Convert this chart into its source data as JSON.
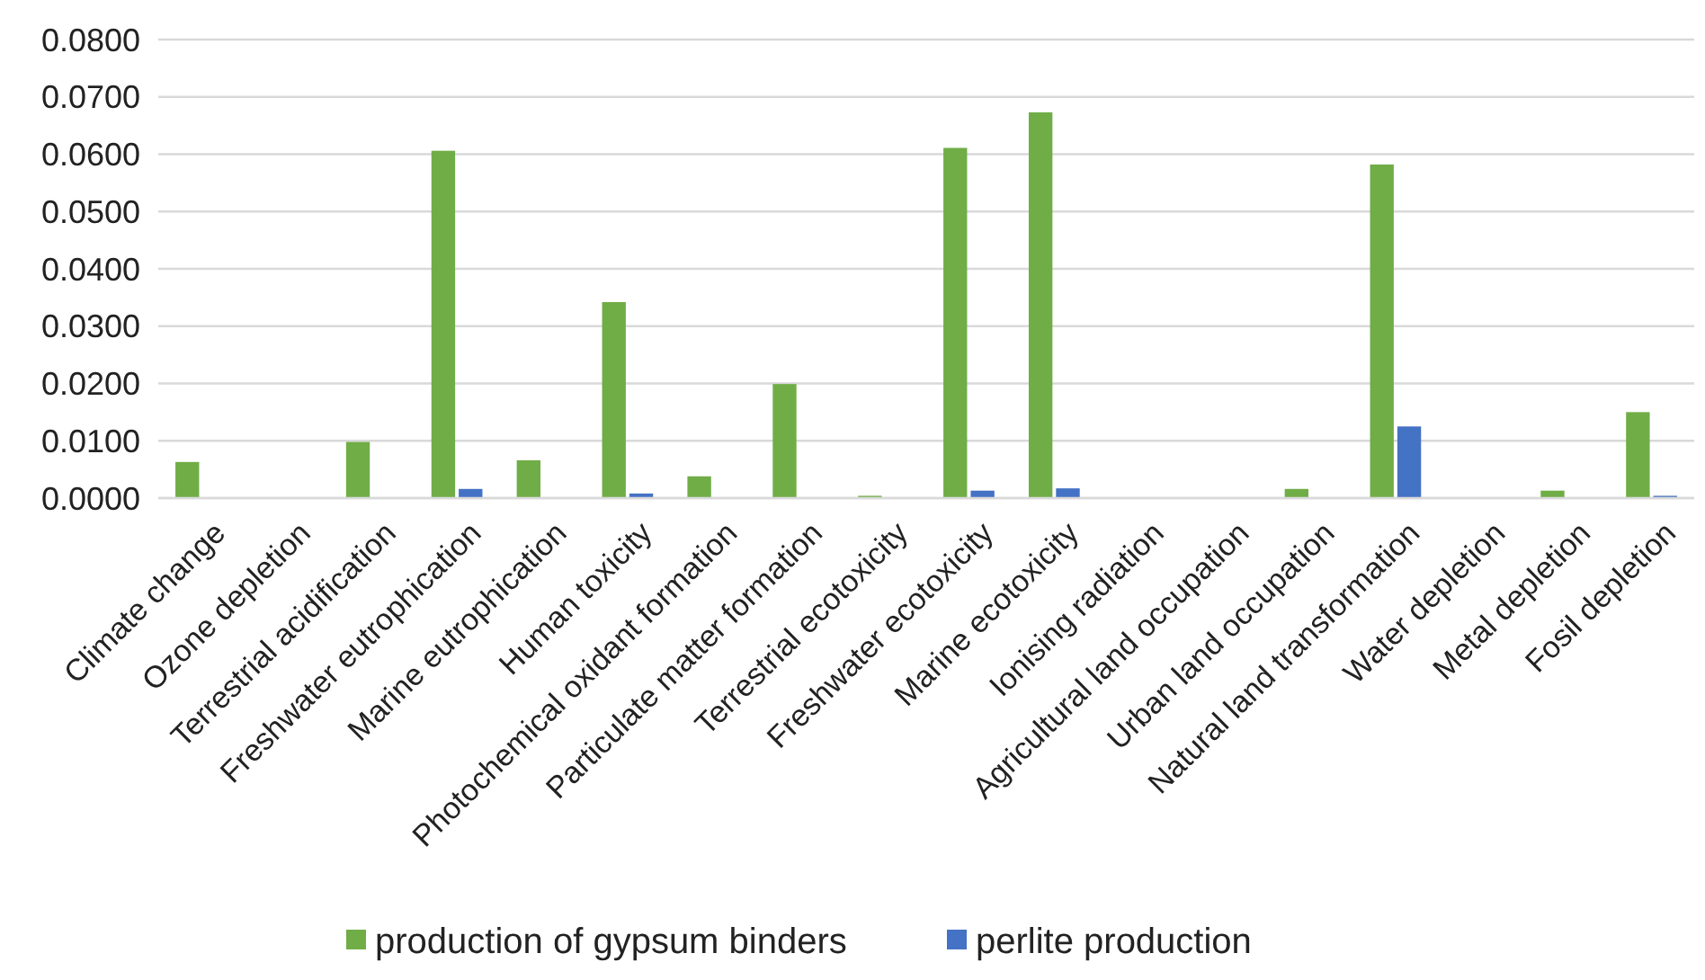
{
  "chart_data": {
    "type": "bar",
    "categories": [
      "Climate change",
      "Ozone depletion",
      "Terrestrial acidification",
      "Freshwater eutrophication",
      "Marine eutrophication",
      "Human toxicity",
      "Photochemical oxidant formation",
      "Particulate matter formation",
      "Terrestrial ecotoxicity",
      "Freshwater ecotoxicity",
      "Marine ecotoxicity",
      "Ionising radiation",
      "Agricultural land occupation",
      "Urban land occupation",
      "Natural land transformation",
      "Water depletion",
      "Metal depletion",
      "Fosil depletion"
    ],
    "series": [
      {
        "name": "production of gypsum binders",
        "color": "#70ad47",
        "values": [
          0.0063,
          0,
          0.0098,
          0.0606,
          0.0066,
          0.0342,
          0.0038,
          0.0199,
          0.0004,
          0.0611,
          0.0673,
          0,
          0,
          0.0016,
          0.0582,
          0,
          0.0013,
          0.015
        ]
      },
      {
        "name": "perlite production",
        "color": "#4472c4",
        "values": [
          0,
          0,
          0,
          0.0016,
          0,
          0.0008,
          0,
          0,
          0,
          0.0013,
          0.0017,
          0,
          0,
          0,
          0.0125,
          0,
          0,
          0.0004
        ]
      }
    ],
    "ylim": [
      0,
      0.08
    ],
    "yticks": [
      {
        "value": 0,
        "label": "0.0000"
      },
      {
        "value": 0.01,
        "label": "0.0100"
      },
      {
        "value": 0.02,
        "label": "0.0200"
      },
      {
        "value": 0.03,
        "label": "0.0300"
      },
      {
        "value": 0.04,
        "label": "0.0400"
      },
      {
        "value": 0.05,
        "label": "0.0500"
      },
      {
        "value": 0.06,
        "label": "0.0600"
      },
      {
        "value": 0.07,
        "label": "0.0700"
      },
      {
        "value": 0.08,
        "label": "0.0800"
      }
    ],
    "grid": "y",
    "legend": "bottom"
  }
}
